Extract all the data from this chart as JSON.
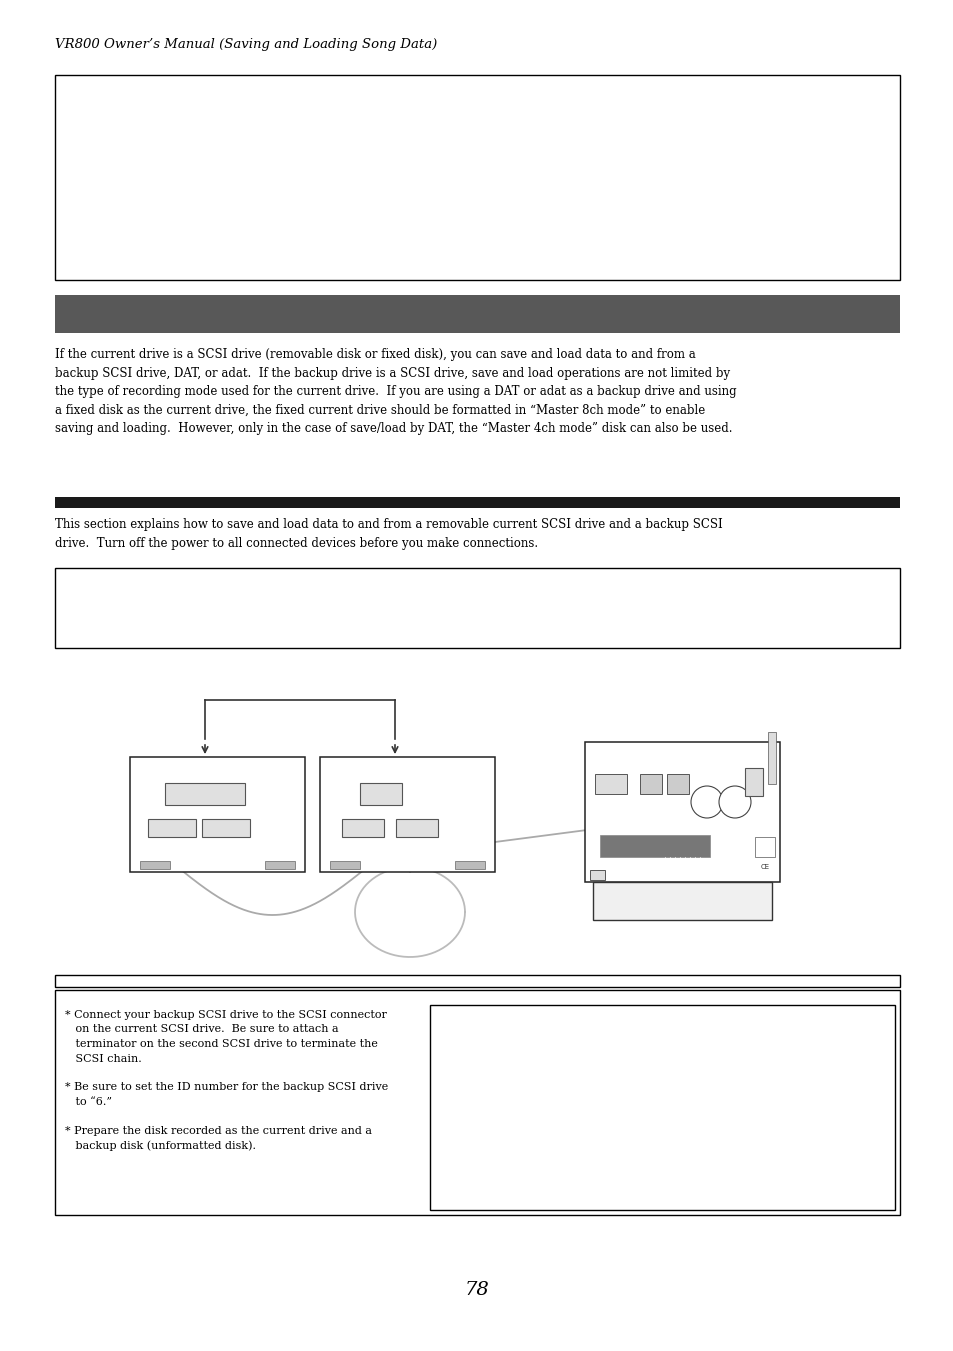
{
  "page_title": "VR800 Owner’s Manual (Saving and Loading Song Data)",
  "bg_color": "#ffffff",
  "bar1_color": "#585858",
  "bar2_color": "#1a1a1a",
  "para1": "If the current drive is a SCSI drive (removable disk or fixed disk), you can save and load data to and from a\nbackup SCSI drive, DAT, or adat.  If the backup drive is a SCSI drive, save and load operations are not limited by\nthe type of recording mode used for the current drive.  If you are using a DAT or adat as a backup drive and using\na fixed disk as the current drive, the fixed current drive should be formatted in “Master 8ch mode” to enable\nsaving and loading.  However, only in the case of save/load by DAT, the “Master 4ch mode” disk can also be used.",
  "para2": "This section explains how to save and load data to and from a removable current SCSI drive and a backup SCSI\ndrive.  Turn off the power to all connected devices before you make connections.",
  "bullet1_line1": "* Connect your backup SCSI drive to the SCSI connector",
  "bullet1_line2": "   on the current SCSI drive.  Be sure to attach a",
  "bullet1_line3": "   terminator on the second SCSI drive to terminate the",
  "bullet1_line4": "   SCSI chain.",
  "bullet2_line1": "* Be sure to set the ID number for the backup SCSI drive",
  "bullet2_line2": "   to “6.”",
  "bullet3_line1": "* Prepare the disk recorded as the current drive and a",
  "bullet3_line2": "   backup disk (unformatted disk).",
  "page_num": "78",
  "font_size_title": 9.5,
  "font_size_body": 8.5,
  "font_size_bullet": 8.0,
  "font_size_page": 14
}
